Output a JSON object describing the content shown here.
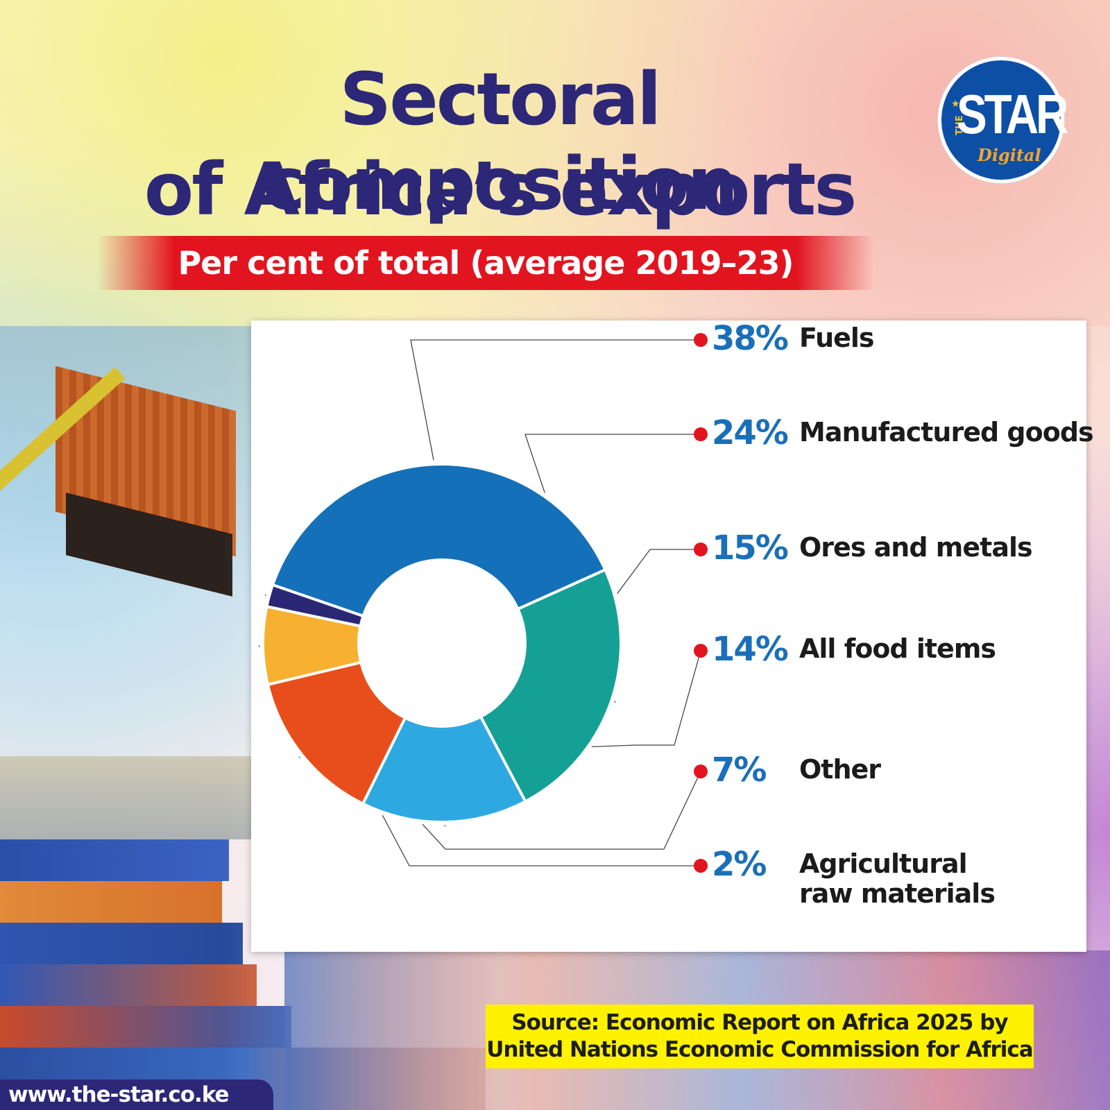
{
  "header": {
    "title_line1": "Sectoral composition",
    "title_line2": "of Africa’s exports",
    "subtitle": "Per cent of total (average 2019–23)"
  },
  "logo": {
    "the": "THE",
    "star": "STAR",
    "digital": "Digital"
  },
  "chart_data": {
    "type": "pie",
    "subtitle": "Per cent of total (average 2019–23)",
    "categories": [
      "Fuels",
      "Manufactured goods",
      "Ores and metals",
      "All food items",
      "Other",
      "Agricultural raw materials"
    ],
    "values": [
      38,
      24,
      15,
      14,
      7,
      2
    ],
    "value_labels": [
      "38%",
      "24%",
      "15%",
      "14%",
      "7%",
      "2%"
    ],
    "label_lines": [
      [
        "Fuels"
      ],
      [
        "Manufactured goods"
      ],
      [
        "Ores and metals"
      ],
      [
        "All food items"
      ],
      [
        "Other"
      ],
      [
        "Agricultural",
        "raw materials"
      ]
    ],
    "colors": [
      "#1470b8",
      "#15a096",
      "#2ea8e0",
      "#e84e1b",
      "#f7b030",
      "#2a2874"
    ]
  },
  "source": {
    "line1": "Source: Economic Report on Africa 2025 by",
    "line2": "United Nations Economic Commission for Africa"
  },
  "footer": {
    "website": "www.the-star.co.ke"
  }
}
